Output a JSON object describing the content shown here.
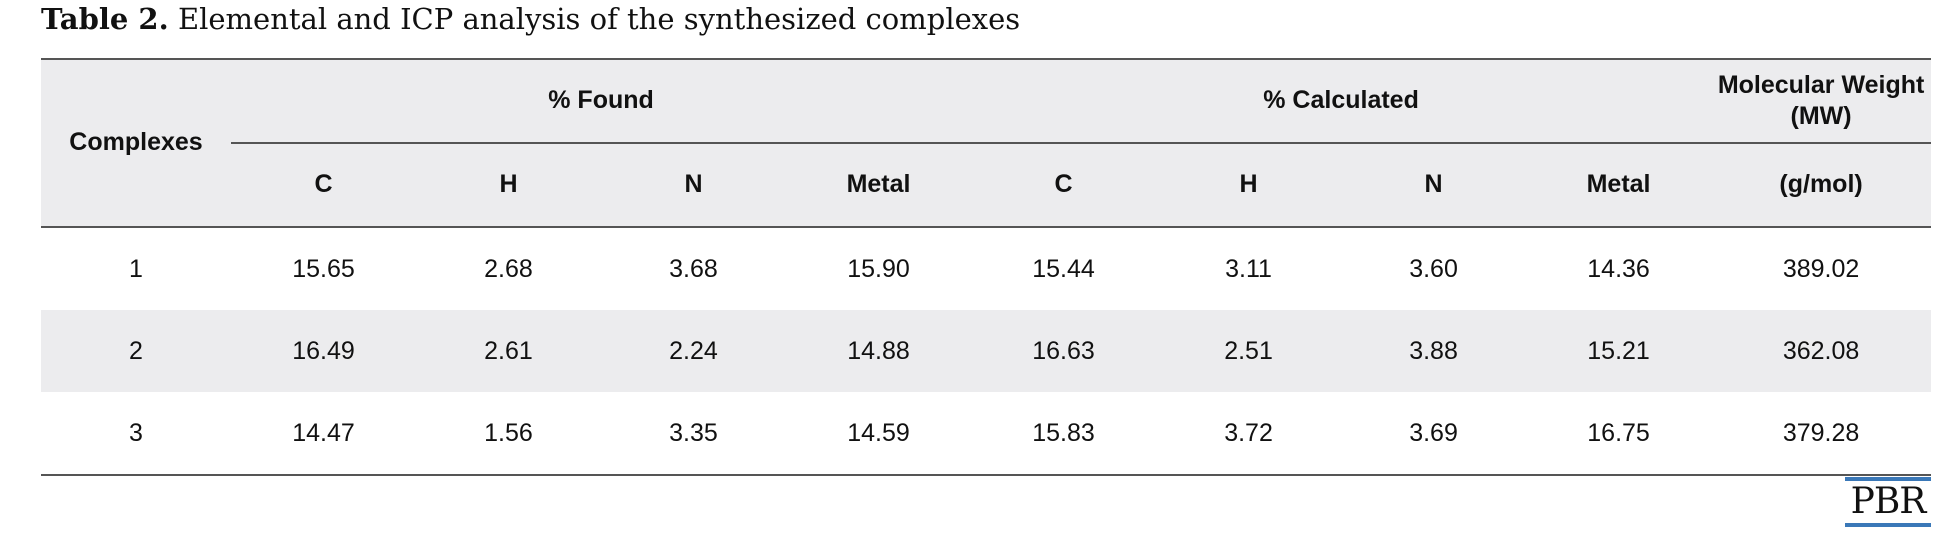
{
  "title": {
    "label": "Table 2.",
    "text": "Elemental and ICP analysis of the synthesized complexes"
  },
  "table": {
    "row_header": "Complexes",
    "groups": [
      "% Found",
      "% Calculated",
      "Molecular Weight (MW)"
    ],
    "columns": [
      "C",
      "H",
      "N",
      "Metal",
      "C",
      "H",
      "N",
      "Metal",
      "(g/mol)"
    ],
    "rows": [
      [
        "1",
        "15.65",
        "2.68",
        "3.68",
        "15.90",
        "15.44",
        "3.11",
        "3.60",
        "14.36",
        "389.02"
      ],
      [
        "2",
        "16.49",
        "2.61",
        "2.24",
        "14.88",
        "16.63",
        "2.51",
        "3.88",
        "15.21",
        "362.08"
      ],
      [
        "3",
        "14.47",
        "1.56",
        "3.35",
        "14.59",
        "15.83",
        "3.72",
        "3.69",
        "16.75",
        "379.28"
      ]
    ]
  },
  "logo": "PBR"
}
